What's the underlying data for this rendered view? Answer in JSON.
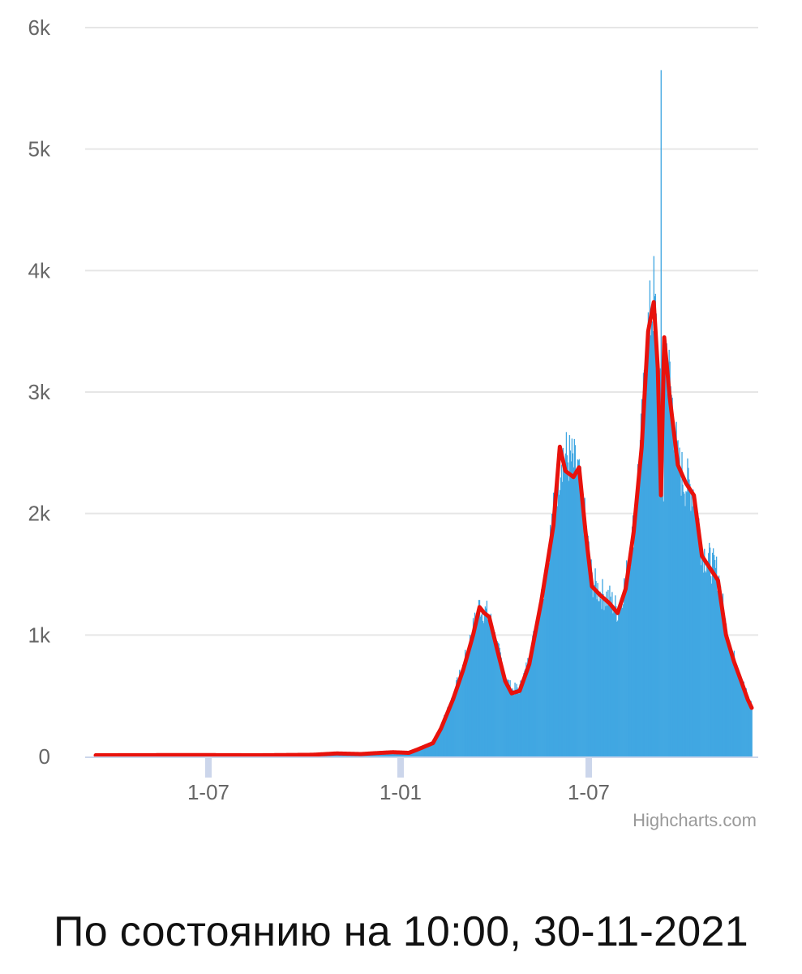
{
  "chart_data": {
    "type": "bar",
    "title": "",
    "xlabel": "",
    "ylabel": "",
    "ylim": [
      0,
      6000
    ],
    "y_ticks": [
      "0",
      "1k",
      "2k",
      "3k",
      "4k",
      "5k",
      "6k"
    ],
    "x_ticks": [
      "1-07",
      "1-01",
      "1-07"
    ],
    "grid": true,
    "legend": "none",
    "credits": "Highcharts.com",
    "colors": {
      "bars": "#41a7e2",
      "line": "#e8120c",
      "grid": "#e6e6e6",
      "axis": "#ccd6eb"
    },
    "series": [
      {
        "kind": "column",
        "description_points": "daily values, keypoints [daycount, value] interpolated at daily resolution",
        "keypoints": [
          [
            0,
            10
          ],
          [
            60,
            8
          ],
          [
            120,
            12
          ],
          [
            200,
            10
          ],
          [
            270,
            15
          ],
          [
            300,
            30
          ],
          [
            330,
            20
          ],
          [
            350,
            30
          ],
          [
            370,
            40
          ],
          [
            390,
            30
          ],
          [
            400,
            60
          ],
          [
            420,
            120
          ],
          [
            430,
            250
          ],
          [
            445,
            500
          ],
          [
            458,
            750
          ],
          [
            470,
            1050
          ],
          [
            478,
            1250
          ],
          [
            484,
            1200
          ],
          [
            490,
            1150
          ],
          [
            500,
            900
          ],
          [
            510,
            650
          ],
          [
            518,
            550
          ],
          [
            528,
            560
          ],
          [
            540,
            800
          ],
          [
            555,
            1300
          ],
          [
            570,
            2000
          ],
          [
            580,
            2500
          ],
          [
            590,
            2450
          ],
          [
            600,
            2350
          ],
          [
            610,
            1900
          ],
          [
            618,
            1450
          ],
          [
            628,
            1350
          ],
          [
            640,
            1300
          ],
          [
            650,
            1200
          ],
          [
            660,
            1450
          ],
          [
            670,
            1900
          ],
          [
            680,
            2700
          ],
          [
            688,
            3500
          ],
          [
            695,
            3800
          ],
          [
            700,
            3300
          ],
          [
            704,
            2800
          ],
          [
            708,
            3400
          ],
          [
            715,
            3100
          ],
          [
            725,
            2400
          ],
          [
            735,
            2250
          ],
          [
            745,
            2200
          ],
          [
            755,
            1700
          ],
          [
            765,
            1600
          ],
          [
            775,
            1500
          ],
          [
            785,
            1050
          ],
          [
            795,
            800
          ],
          [
            805,
            620
          ],
          [
            812,
            480
          ],
          [
            817,
            420
          ]
        ],
        "spikes": [
          [
            704,
            5650
          ],
          [
            707,
            2100
          ],
          [
            711,
            3400
          ]
        ]
      },
      {
        "kind": "line",
        "description_points": "smoothed moving average keypoints [daycount, value]",
        "keypoints": [
          [
            0,
            10
          ],
          [
            120,
            12
          ],
          [
            200,
            10
          ],
          [
            270,
            14
          ],
          [
            300,
            25
          ],
          [
            330,
            20
          ],
          [
            350,
            28
          ],
          [
            370,
            35
          ],
          [
            390,
            30
          ],
          [
            400,
            55
          ],
          [
            420,
            110
          ],
          [
            430,
            230
          ],
          [
            445,
            470
          ],
          [
            458,
            720
          ],
          [
            470,
            1000
          ],
          [
            478,
            1230
          ],
          [
            484,
            1180
          ],
          [
            490,
            1150
          ],
          [
            500,
            880
          ],
          [
            510,
            620
          ],
          [
            518,
            520
          ],
          [
            528,
            540
          ],
          [
            540,
            760
          ],
          [
            555,
            1280
          ],
          [
            570,
            1900
          ],
          [
            578,
            2550
          ],
          [
            585,
            2350
          ],
          [
            595,
            2300
          ],
          [
            602,
            2380
          ],
          [
            610,
            1850
          ],
          [
            618,
            1400
          ],
          [
            628,
            1330
          ],
          [
            640,
            1260
          ],
          [
            650,
            1180
          ],
          [
            660,
            1380
          ],
          [
            670,
            1850
          ],
          [
            680,
            2550
          ],
          [
            688,
            3500
          ],
          [
            695,
            3740
          ],
          [
            700,
            3200
          ],
          [
            704,
            2150
          ],
          [
            708,
            3450
          ],
          [
            715,
            2950
          ],
          [
            725,
            2400
          ],
          [
            735,
            2250
          ],
          [
            745,
            2150
          ],
          [
            755,
            1650
          ],
          [
            765,
            1550
          ],
          [
            775,
            1450
          ],
          [
            785,
            1000
          ],
          [
            795,
            780
          ],
          [
            805,
            600
          ],
          [
            812,
            470
          ],
          [
            817,
            400
          ]
        ]
      }
    ]
  },
  "footer": {
    "status": "По состоянию на 10:00, 30-11-2021"
  }
}
